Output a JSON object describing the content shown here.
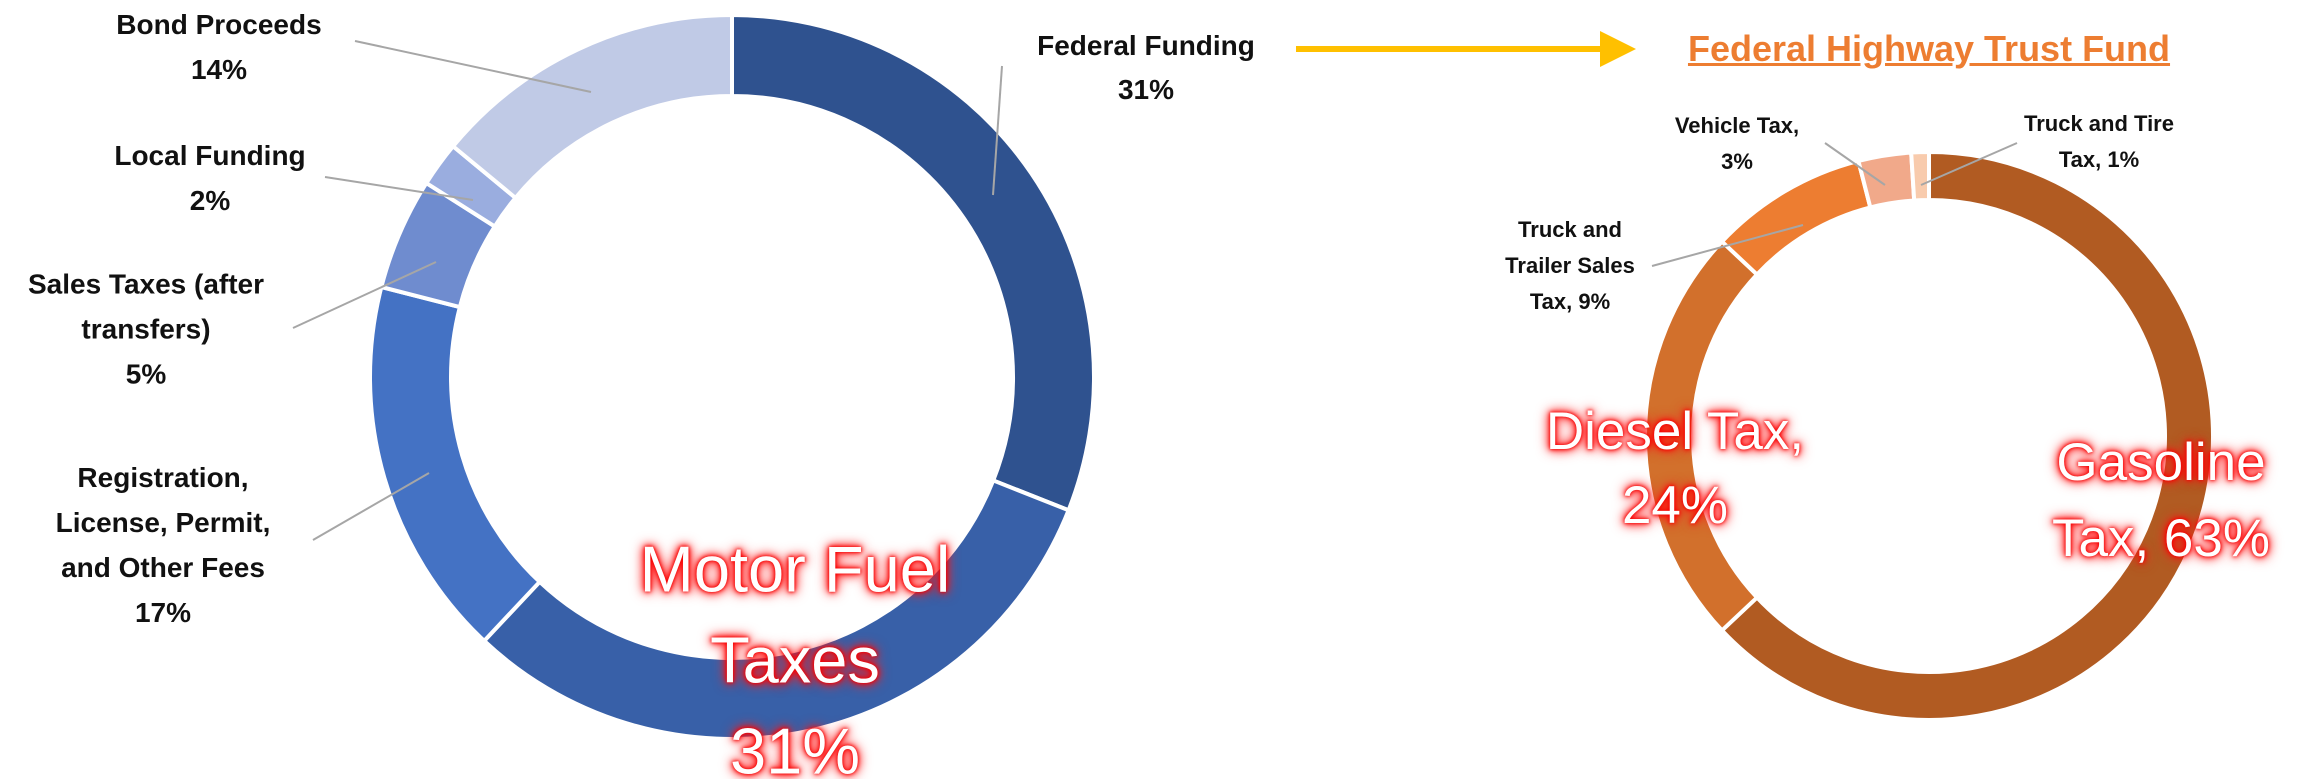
{
  "chart_data": [
    {
      "type": "donut",
      "categories": [
        "Federal Funding",
        "Motor Fuel Taxes",
        "Registration, License, Permit, and Other Fees",
        "Sales Taxes (after transfers)",
        "Local Funding",
        "Bond Proceeds"
      ],
      "values": [
        31,
        31,
        17,
        5,
        2,
        14
      ],
      "value_labels": [
        "31%",
        "31%",
        "17%",
        "5%",
        "2%",
        "14%"
      ],
      "colors": [
        "#2f528f",
        "#3860a8",
        "#4472c4",
        "#6f8ccf",
        "#9aaddf",
        "#c0cae6"
      ]
    },
    {
      "type": "donut",
      "title": "Federal Highway Trust Fund",
      "categories": [
        "Gasoline Tax, 63%",
        "Diesel Tax, 24%",
        "Truck and Trailer Sales Tax, 9%",
        "Vehicle Tax, 3%",
        "Truck and Tire Tax, 1%"
      ],
      "values": [
        63,
        24,
        9,
        3,
        1
      ],
      "colors": [
        "#b15b22",
        "#d2702c",
        "#ed7d31",
        "#f1a98a",
        "#f8cbad"
      ]
    }
  ]
}
